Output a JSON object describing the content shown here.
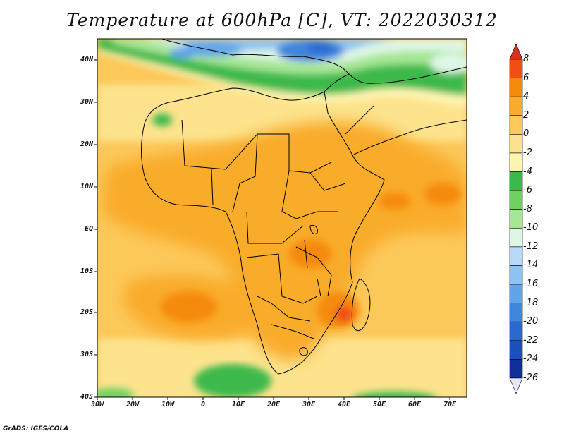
{
  "title": "Temperature at 600hPa [C], VT: 2022030312",
  "credit": "GrADS: IGES/COLA",
  "lat_labels": [
    "40N",
    "30N",
    "20N",
    "10N",
    "EQ",
    "10S",
    "20S",
    "30S",
    "40S"
  ],
  "lon_labels": [
    "30W",
    "20W",
    "10W",
    "0",
    "10E",
    "20E",
    "30E",
    "40E",
    "50E",
    "60E",
    "70E"
  ],
  "colorbar": {
    "labels": [
      "8",
      "6",
      "4",
      "2",
      "0",
      "-2",
      "-4",
      "-6",
      "-8",
      "-10",
      "-12",
      "-14",
      "-16",
      "-18",
      "-20",
      "-22",
      "-24",
      "-26"
    ],
    "colors": [
      "#d7301f",
      "#f24d12",
      "#f58a0a",
      "#f9ab2c",
      "#fcc85a",
      "#fde38d",
      "#fdf6b3",
      "#3cb94b",
      "#6fd160",
      "#a6e695",
      "#dff6e6",
      "#b5d9f7",
      "#8ec3f2",
      "#62a4e8",
      "#3f86dd",
      "#2a6ad0",
      "#1a4fbc",
      "#0f2f98",
      "#0a1a6b"
    ]
  },
  "colors": {
    "background": "#ffffff",
    "ocean_tropics": "#fcc85a",
    "warm_land": "#f9ab2c",
    "hot_spots": "#f58a0a",
    "mid_latitude": "#fde38d",
    "cool_band": "#6fd160",
    "cold_north": "#62a4e8",
    "coast_lines": "#000000"
  }
}
